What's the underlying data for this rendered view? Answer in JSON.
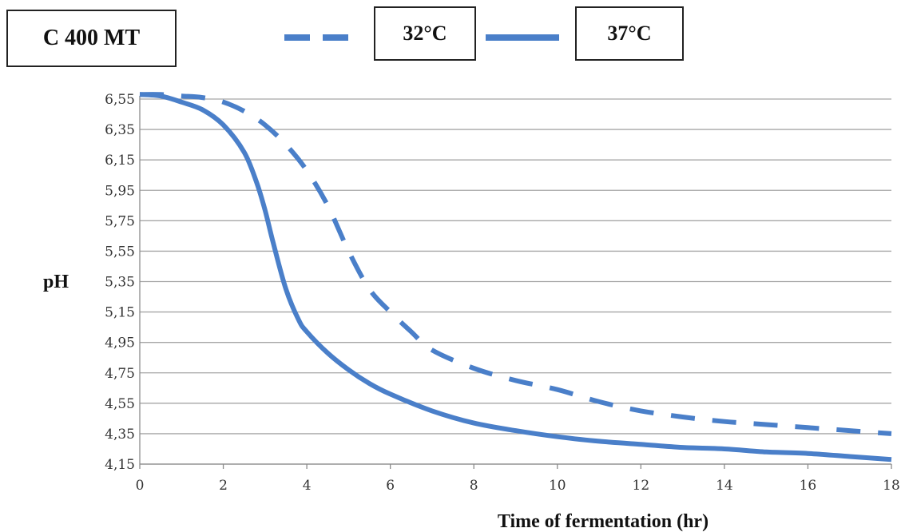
{
  "chart_data": {
    "type": "line",
    "title": "C 400 MT",
    "xlabel": "Time of fermentation (hr)",
    "ylabel": "pH",
    "xlim": [
      0,
      18
    ],
    "ylim": [
      4.15,
      6.55
    ],
    "x_ticks": [
      0,
      2,
      4,
      6,
      8,
      10,
      12,
      14,
      16,
      18
    ],
    "x_tick_labels": [
      "0",
      "2",
      "4",
      "6",
      "8",
      "10",
      "12",
      "14",
      "16",
      "18"
    ],
    "y_ticks": [
      4.15,
      4.35,
      4.55,
      4.75,
      4.95,
      5.15,
      5.35,
      5.55,
      5.75,
      5.95,
      6.15,
      6.35,
      6.55
    ],
    "y_tick_labels": [
      "4,15",
      "4,35",
      "4,55",
      "4,75",
      "4,95",
      "5,15",
      "5,35",
      "5,55",
      "5,75",
      "5,95",
      "6,15",
      "6,35",
      "6,55"
    ],
    "grid": "horizontal",
    "legend_placement": "top",
    "series": [
      {
        "name": "32°C",
        "style": "dashed",
        "color": "#4a7fc9",
        "x": [
          0,
          0.5,
          1,
          1.5,
          2,
          2.5,
          3,
          3.5,
          4,
          4.5,
          5,
          5.5,
          6,
          6.5,
          7,
          8,
          9,
          10,
          11,
          12,
          13,
          14,
          15,
          16,
          17,
          18
        ],
        "y": [
          6.58,
          6.58,
          6.57,
          6.56,
          6.53,
          6.47,
          6.38,
          6.25,
          6.08,
          5.85,
          5.55,
          5.3,
          5.15,
          5.02,
          4.9,
          4.78,
          4.7,
          4.64,
          4.56,
          4.5,
          4.46,
          4.43,
          4.41,
          4.39,
          4.37,
          4.35
        ]
      },
      {
        "name": "37°C",
        "style": "solid",
        "color": "#4a7fc9",
        "x": [
          0,
          0.5,
          1,
          1.5,
          2,
          2.5,
          2.8,
          3,
          3.2,
          3.5,
          3.8,
          4,
          4.5,
          5,
          5.5,
          6,
          7,
          8,
          9,
          10,
          11,
          12,
          13,
          14,
          15,
          16,
          17,
          18
        ],
        "y": [
          6.58,
          6.57,
          6.53,
          6.48,
          6.38,
          6.2,
          6.0,
          5.82,
          5.6,
          5.3,
          5.1,
          5.02,
          4.88,
          4.77,
          4.68,
          4.61,
          4.5,
          4.42,
          4.37,
          4.33,
          4.3,
          4.28,
          4.26,
          4.25,
          4.23,
          4.22,
          4.2,
          4.18
        ]
      }
    ]
  }
}
